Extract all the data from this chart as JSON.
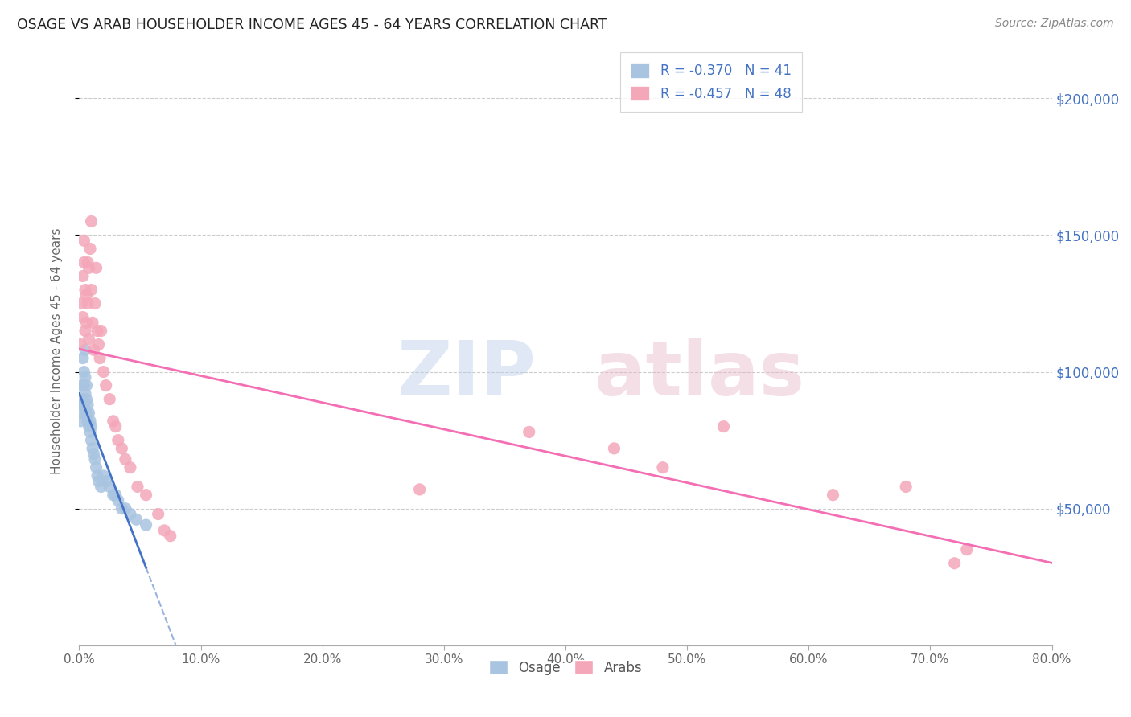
{
  "title": "OSAGE VS ARAB HOUSEHOLDER INCOME AGES 45 - 64 YEARS CORRELATION CHART",
  "source": "Source: ZipAtlas.com",
  "ylabel": "Householder Income Ages 45 - 64 years",
  "ytick_labels": [
    "$50,000",
    "$100,000",
    "$150,000",
    "$200,000"
  ],
  "ytick_values": [
    50000,
    100000,
    150000,
    200000
  ],
  "xlim": [
    0,
    0.8
  ],
  "ylim": [
    0,
    215000
  ],
  "osage_color": "#a8c4e0",
  "arab_color": "#f4a7b9",
  "osage_line_color": "#4472c4",
  "arab_line_color": "#f46eb4",
  "osage_R": -0.37,
  "osage_N": 41,
  "arab_R": -0.457,
  "arab_N": 48,
  "watermark_zip": "ZIP",
  "watermark_atlas": "atlas",
  "legend_osage": "Osage",
  "legend_arab": "Arabs",
  "osage_x": [
    0.001,
    0.002,
    0.002,
    0.003,
    0.003,
    0.003,
    0.004,
    0.004,
    0.004,
    0.005,
    0.005,
    0.005,
    0.006,
    0.006,
    0.006,
    0.007,
    0.007,
    0.008,
    0.008,
    0.009,
    0.009,
    0.01,
    0.01,
    0.011,
    0.012,
    0.013,
    0.014,
    0.015,
    0.016,
    0.018,
    0.02,
    0.022,
    0.025,
    0.028,
    0.03,
    0.032,
    0.035,
    0.038,
    0.042,
    0.047,
    0.055
  ],
  "osage_y": [
    82000,
    90000,
    95000,
    85000,
    88000,
    105000,
    95000,
    100000,
    88000,
    92000,
    98000,
    108000,
    85000,
    90000,
    95000,
    82000,
    88000,
    80000,
    85000,
    78000,
    82000,
    75000,
    80000,
    72000,
    70000,
    68000,
    65000,
    62000,
    60000,
    58000,
    62000,
    60000,
    58000,
    55000,
    55000,
    53000,
    50000,
    50000,
    48000,
    46000,
    44000
  ],
  "arab_x": [
    0.001,
    0.002,
    0.003,
    0.003,
    0.004,
    0.004,
    0.005,
    0.005,
    0.006,
    0.006,
    0.007,
    0.007,
    0.008,
    0.008,
    0.009,
    0.01,
    0.01,
    0.011,
    0.012,
    0.013,
    0.014,
    0.015,
    0.016,
    0.017,
    0.018,
    0.02,
    0.022,
    0.025,
    0.028,
    0.03,
    0.032,
    0.035,
    0.038,
    0.042,
    0.048,
    0.055,
    0.065,
    0.07,
    0.075,
    0.28,
    0.37,
    0.44,
    0.48,
    0.53,
    0.62,
    0.68,
    0.72,
    0.73
  ],
  "arab_y": [
    110000,
    125000,
    135000,
    120000,
    148000,
    140000,
    130000,
    115000,
    128000,
    118000,
    140000,
    125000,
    138000,
    112000,
    145000,
    155000,
    130000,
    118000,
    108000,
    125000,
    138000,
    115000,
    110000,
    105000,
    115000,
    100000,
    95000,
    90000,
    82000,
    80000,
    75000,
    72000,
    68000,
    65000,
    58000,
    55000,
    48000,
    42000,
    40000,
    57000,
    78000,
    72000,
    65000,
    80000,
    55000,
    58000,
    30000,
    35000
  ]
}
